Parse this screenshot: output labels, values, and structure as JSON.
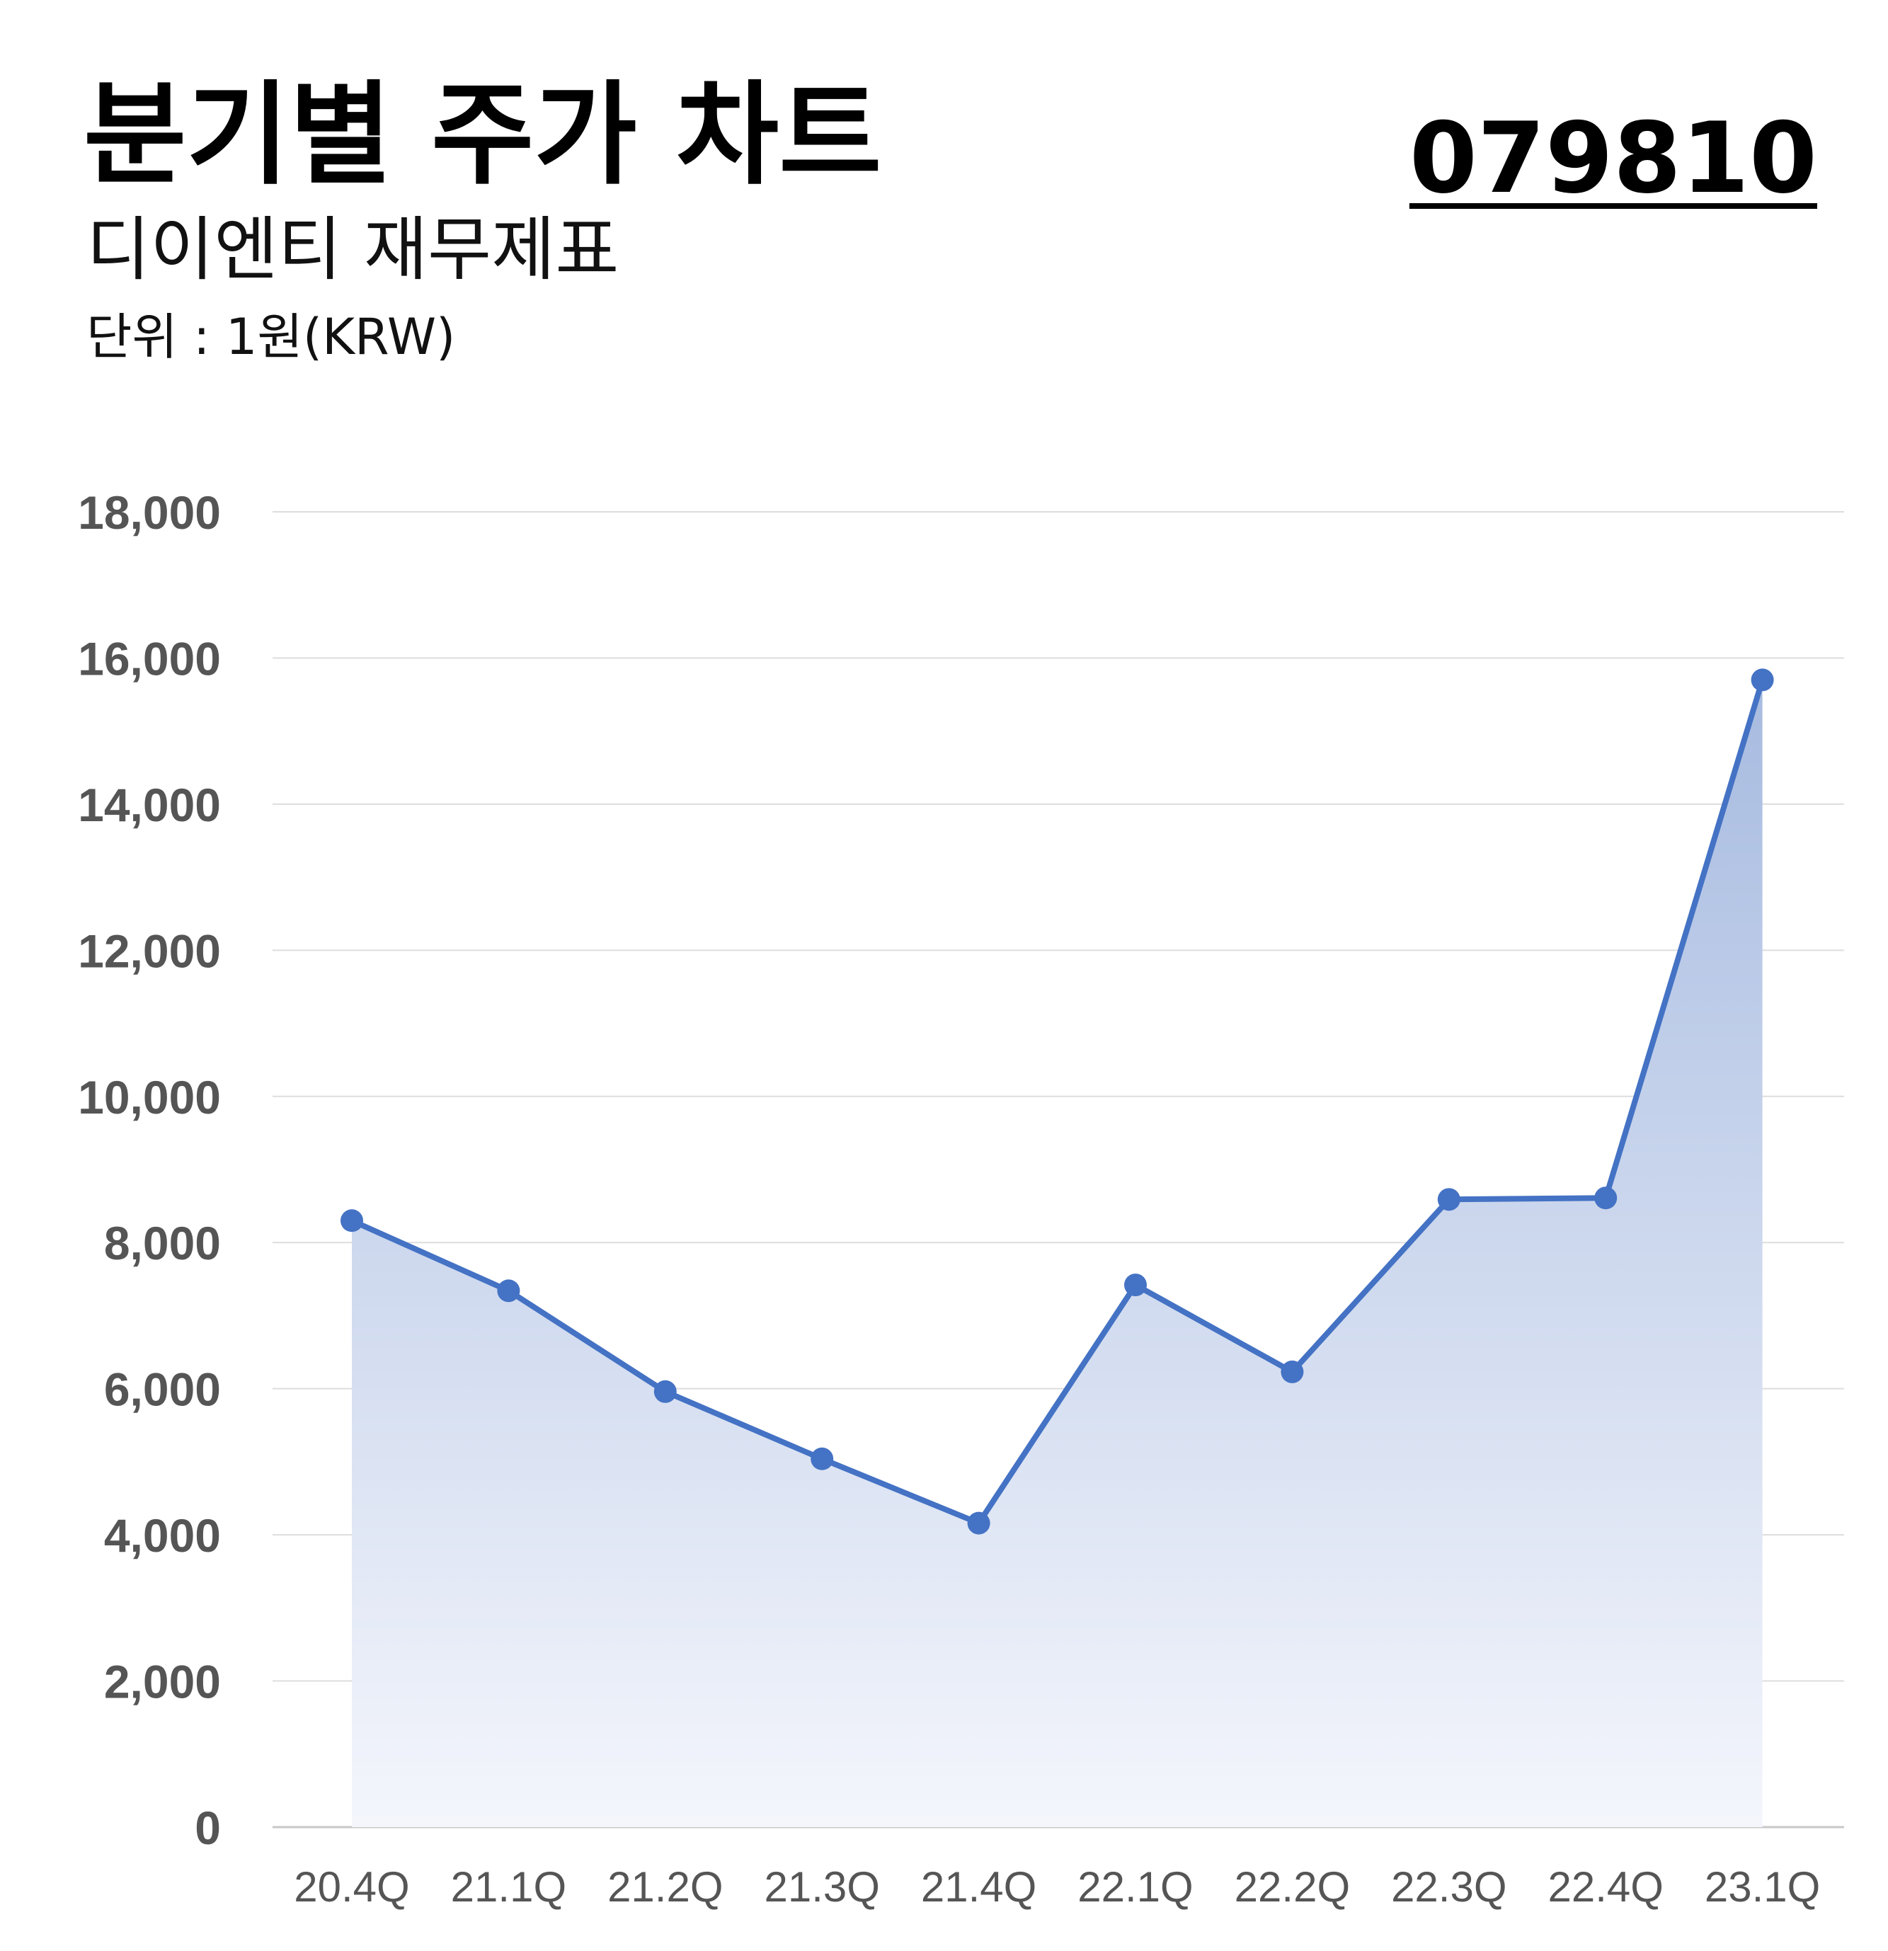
{
  "header": {
    "title": "분기별 주가 차트",
    "subtitle": "디이엔티 재무제표",
    "unit": "단위 : 1원(KRW)",
    "code": "079810"
  },
  "colors": {
    "line": "#4472C4",
    "fill_top": "#A7BBE0",
    "fill_bottom": "#F4F6FC",
    "grid": "#DDDDDD",
    "tick_text": "#555555"
  },
  "chart_data": {
    "type": "area",
    "title": "분기별 주가 차트",
    "xlabel": "",
    "ylabel": "",
    "categories": [
      "20.4Q",
      "21.1Q",
      "21.2Q",
      "21.3Q",
      "21.4Q",
      "22.1Q",
      "22.2Q",
      "22.3Q",
      "22.4Q",
      "23.1Q"
    ],
    "series": [
      {
        "values": [
          8300,
          7340,
          5960,
          5040,
          4160,
          7420,
          6230,
          8590,
          8610,
          15700
        ]
      }
    ],
    "ylim": [
      0,
      18000
    ],
    "yticks": [
      0,
      2000,
      4000,
      6000,
      8000,
      10000,
      12000,
      14000,
      16000,
      18000
    ],
    "ytick_labels": [
      "0",
      "2,000",
      "4,000",
      "6,000",
      "8,000",
      "10,000",
      "12,000",
      "14,000",
      "16,000",
      "18,000"
    ],
    "grid": true,
    "legend": "none"
  }
}
